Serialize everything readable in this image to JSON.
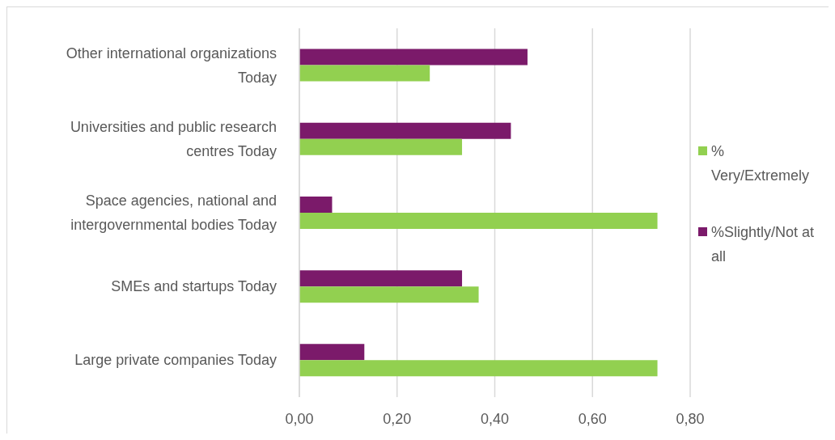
{
  "chart_data": {
    "type": "bar",
    "orientation": "horizontal",
    "categories": [
      "Other international organizations Today",
      "Universities and public research centres Today",
      "Space agencies, national and intergovernmental bodies Today",
      "SMEs and startups Today",
      "Large private companies Today"
    ],
    "series": [
      {
        "name": "%Slightly/Not at all",
        "color": "#7b1a6a",
        "values": [
          0.467,
          0.433,
          0.067,
          0.333,
          0.133
        ]
      },
      {
        "name": "% Very/Extremely",
        "color": "#92d050",
        "values": [
          0.267,
          0.333,
          0.733,
          0.367,
          0.733
        ]
      }
    ],
    "xlim": [
      0,
      0.8
    ],
    "xticks": [
      {
        "value": 0,
        "label": "0,00"
      },
      {
        "value": 0.2,
        "label": "0,20"
      },
      {
        "value": 0.4,
        "label": "0,40"
      },
      {
        "value": 0.6,
        "label": "0,60"
      },
      {
        "value": 0.8,
        "label": "0,80"
      }
    ],
    "grid": "x",
    "legend": "right"
  }
}
